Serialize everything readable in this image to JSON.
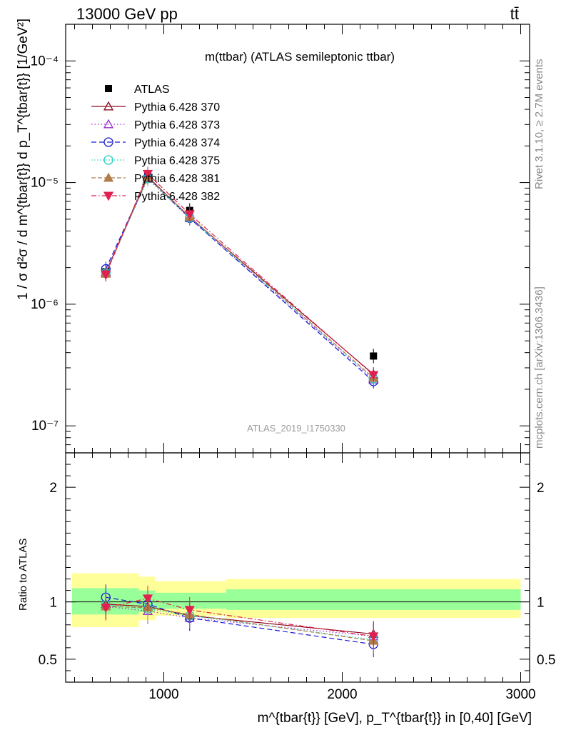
{
  "header": {
    "energy_label": "13000 GeV pp",
    "process_label": "tt̄",
    "side_label_top": "Rivet 3.1.10, ≥ 2.7M events",
    "side_label_bottom": "mcplots.cern.ch [arXiv:1306.3436]",
    "watermark": "ATLAS_2019_I1750330"
  },
  "chart_data": [
    {
      "type": "line",
      "title": "m(ttbar) (ATLAS semileptonic ttbar)",
      "ylabel": "1 / σ d²σ / d m^{tbar{t}} d p_T^{tbar{t}} [1/GeV²]",
      "yscale": "log",
      "ylim": [
        6e-08,
        0.0002
      ],
      "xlim": [
        450,
        3050
      ],
      "ytick_labels": [
        "10⁻⁴",
        "10⁻⁵",
        "10⁻⁶",
        "10⁻⁷"
      ],
      "legend_position": "top-left",
      "x": [
        675,
        910,
        1145,
        2175
      ],
      "series": [
        {
          "name": "ATLAS",
          "color": "#000000",
          "marker": "square",
          "values": [
            1.85e-06,
            1.15e-05,
            5.9e-06,
            3.75e-07
          ]
        },
        {
          "name": "Pythia 6.428 370",
          "color": "#8b0a1e",
          "marker": "triangle-up-open",
          "dash": "",
          "values": [
            1.82e-06,
            1.12e-05,
            5.2e-06,
            2.65e-07
          ]
        },
        {
          "name": "Pythia 6.428 373",
          "color": "#9b30d0",
          "marker": "triangle-up-open",
          "dash": "1.5,3",
          "values": [
            1.85e-06,
            1.07e-05,
            5.1e-06,
            2.4e-07
          ]
        },
        {
          "name": "Pythia 6.428 374",
          "color": "#1a1ad8",
          "marker": "circle-open",
          "dash": "7,4",
          "values": [
            1.95e-06,
            1.1e-05,
            5.1e-06,
            2.32e-07
          ]
        },
        {
          "name": "Pythia 6.428 375",
          "color": "#22d0c0",
          "marker": "circle-open",
          "dash": "1.5,2.5",
          "values": [
            1.8e-06,
            1.08e-05,
            5.15e-06,
            2.45e-07
          ]
        },
        {
          "name": "Pythia 6.428 381",
          "color": "#b07d4a",
          "marker": "triangle-up",
          "dash": "6,3",
          "values": [
            1.78e-06,
            1.1e-05,
            5.25e-06,
            2.48e-07
          ]
        },
        {
          "name": "Pythia 6.428 382",
          "color": "#e0204e",
          "marker": "triangle-down",
          "dash": "7,3,1.5,3",
          "values": [
            1.75e-06,
            1.18e-05,
            5.5e-06,
            2.62e-07
          ]
        }
      ]
    },
    {
      "type": "line",
      "ylabel": "Ratio to ATLAS",
      "ylim": [
        0.3,
        2.3
      ],
      "yticks": [
        0.5,
        1,
        2
      ],
      "ytick_labels": [
        "0.5",
        "1",
        "2"
      ],
      "xlim": [
        450,
        3050
      ],
      "xticks": [
        1000,
        2000,
        3000
      ],
      "xtick_labels": [
        "1000",
        "2000",
        "3000"
      ],
      "xlabel": "m^{tbar{t}} [GeV], p_T^{tbar{t}} in [0,40] [GeV]",
      "x": [
        675,
        910,
        1145,
        2175
      ],
      "bins": [
        [
          485,
          860
        ],
        [
          860,
          950
        ],
        [
          950,
          1350
        ],
        [
          1350,
          3000
        ]
      ],
      "band_inner": [
        [
          0.89,
          1.12
        ],
        [
          0.91,
          1.1
        ],
        [
          0.94,
          1.08
        ],
        [
          0.93,
          1.11
        ]
      ],
      "band_outer": [
        [
          0.78,
          1.25
        ],
        [
          0.84,
          1.22
        ],
        [
          0.88,
          1.18
        ],
        [
          0.86,
          1.2
        ]
      ],
      "series": [
        {
          "name": "Pythia 6.428 370",
          "values": [
            0.98,
            0.96,
            0.88,
            0.72
          ]
        },
        {
          "name": "Pythia 6.428 373",
          "values": [
            0.96,
            0.92,
            0.86,
            0.7
          ]
        },
        {
          "name": "Pythia 6.428 374",
          "values": [
            1.04,
            0.98,
            0.86,
            0.63
          ]
        },
        {
          "name": "Pythia 6.428 375",
          "values": [
            0.97,
            0.94,
            0.88,
            0.67
          ]
        },
        {
          "name": "Pythia 6.428 381",
          "values": [
            0.96,
            0.95,
            0.89,
            0.66
          ]
        },
        {
          "name": "Pythia 6.428 382",
          "values": [
            0.95,
            1.03,
            0.93,
            0.7
          ]
        }
      ]
    }
  ]
}
